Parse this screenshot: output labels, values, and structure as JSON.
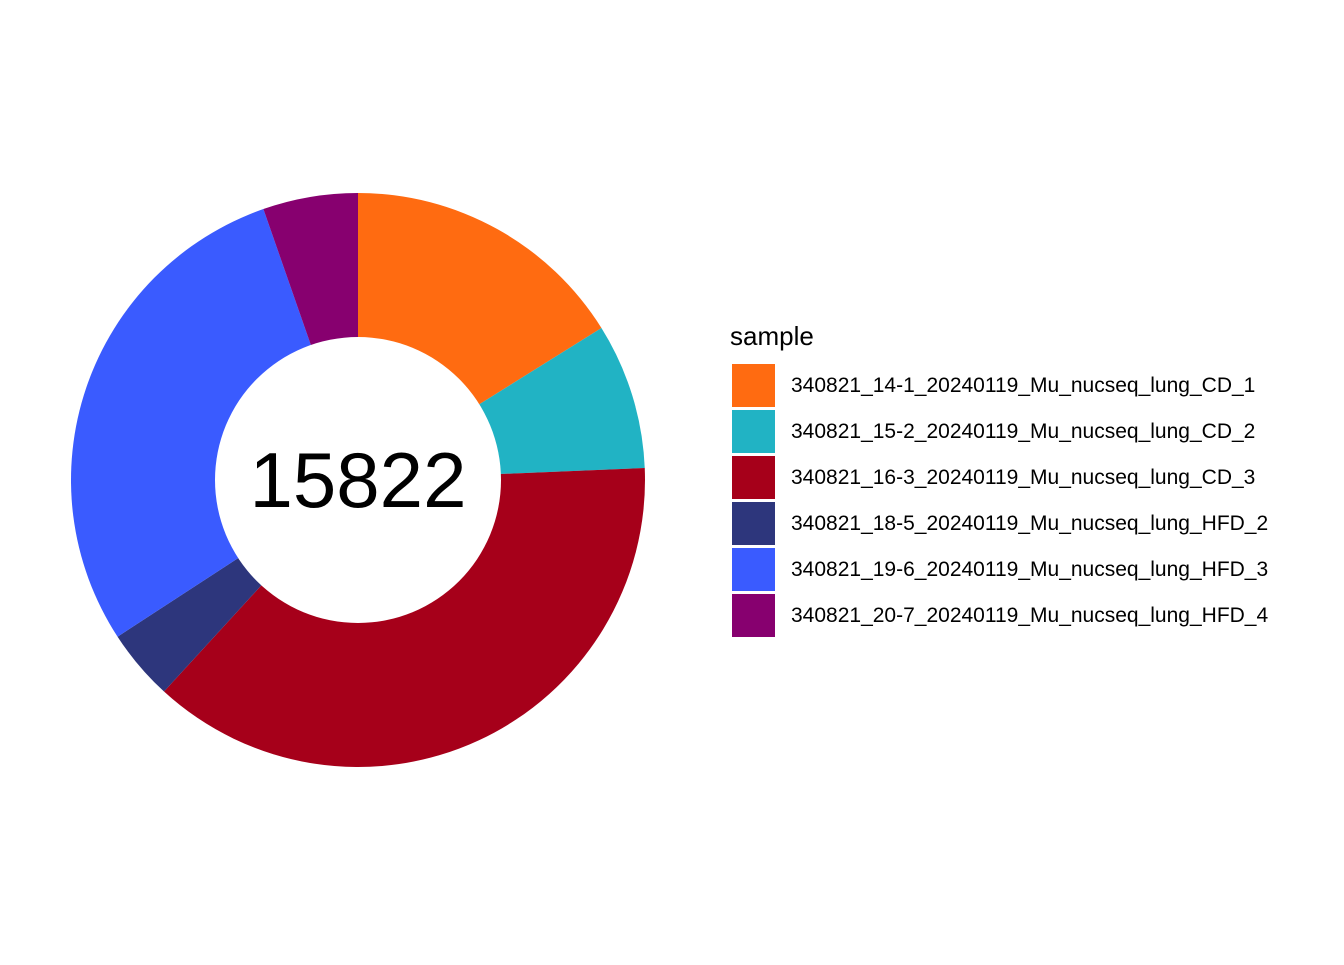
{
  "chart_data": {
    "type": "pie",
    "variant": "donut",
    "center_label": "15822",
    "start_angle": "12 o'clock",
    "direction": "clockwise",
    "legend_title": "sample",
    "legend_position": "right",
    "slices": [
      {
        "label": "340821_14-1_20240119_Mu_nucseq_lung_CD_1",
        "value": 2550,
        "color": "#FF6B11"
      },
      {
        "label": "340821_15-2_20240119_Mu_nucseq_lung_CD_2",
        "value": 1300,
        "color": "#21B3C4"
      },
      {
        "label": "340821_16-3_20240119_Mu_nucseq_lung_CD_3",
        "value": 5930,
        "color": "#A6001A"
      },
      {
        "label": "340821_18-5_20240119_Mu_nucseq_lung_HFD_2",
        "value": 632,
        "color": "#2D367C"
      },
      {
        "label": "340821_19-6_20240119_Mu_nucseq_lung_HFD_3",
        "value": 4564,
        "color": "#3A5BFF"
      },
      {
        "label": "340821_20-7_20240119_Mu_nucseq_lung_HFD_4",
        "value": 846,
        "color": "#87006F"
      }
    ]
  }
}
